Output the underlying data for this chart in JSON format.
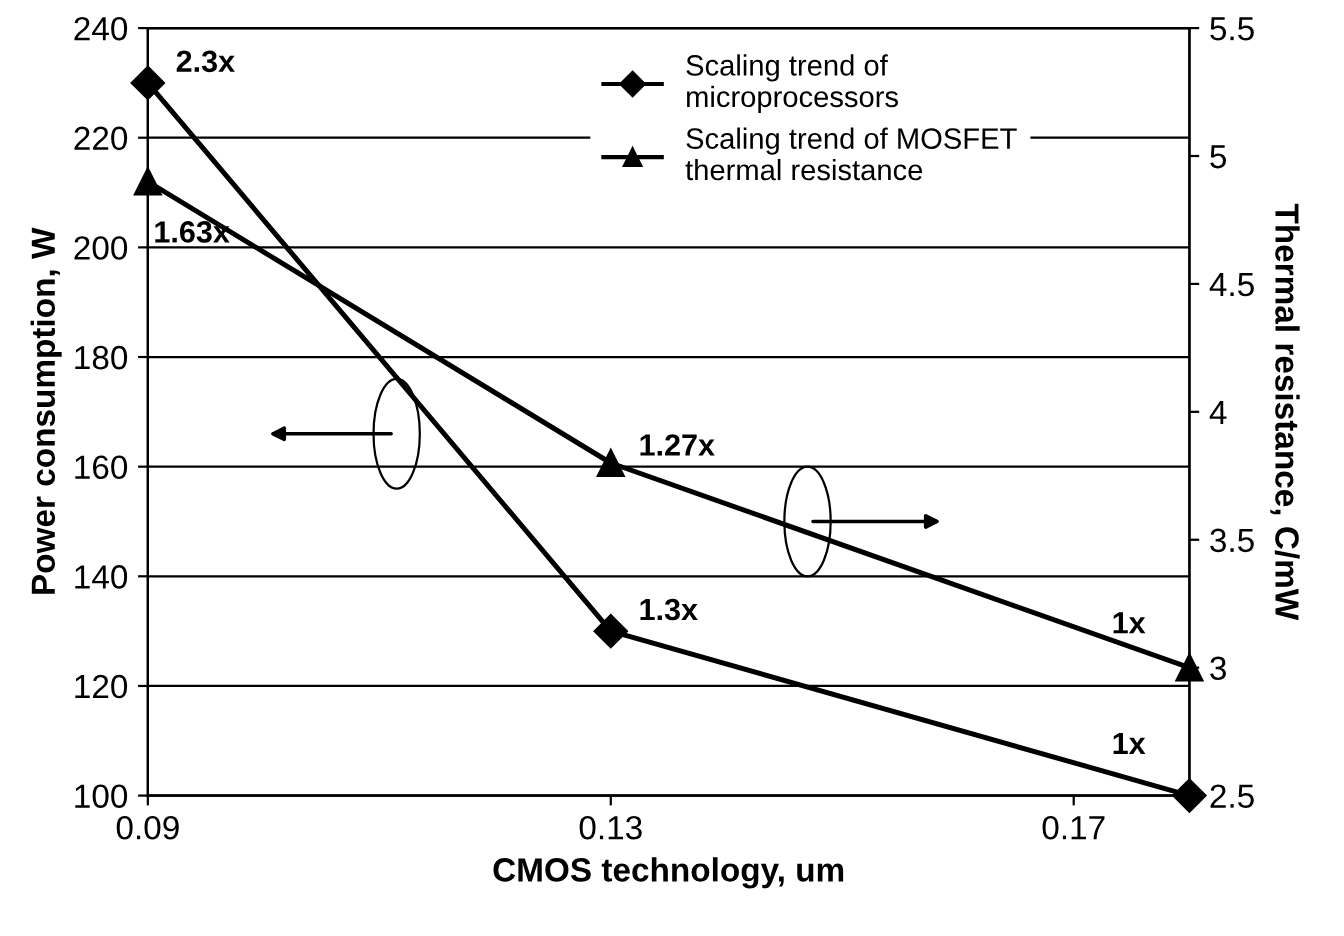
{
  "chart_data": {
    "type": "line",
    "xlabel": "CMOS technology, um",
    "ylabel": "Power consumption, W",
    "y2label": "Thermal resistance, C/mW",
    "x": [
      0.09,
      0.13,
      0.18
    ],
    "series": [
      {
        "name": "Scaling trend of microprocessors",
        "color": "#000000",
        "marker": "diamond",
        "values": [
          230,
          130,
          100
        ]
      },
      {
        "name": "Scaling trend of MOSFET thermal resistance",
        "color": "#000000",
        "marker": "triangle",
        "axis": "y2",
        "values": [
          4.9,
          3.8,
          3.0
        ]
      }
    ],
    "annotations": [
      {
        "text": "2.3x",
        "x": 0.09,
        "y": 230
      },
      {
        "text": "1.3x",
        "x": 0.13,
        "y": 130
      },
      {
        "text": "1x",
        "x": 0.18,
        "y": 100
      },
      {
        "text": "1.63x",
        "x": 0.09,
        "y": 208
      },
      {
        "text": "1.27x",
        "x": 0.13,
        "y": 160
      },
      {
        "text": "1x",
        "x": 0.18,
        "y": 122
      }
    ],
    "xlim": [
      0.09,
      0.18
    ],
    "xticks": [
      0.09,
      0.13,
      0.17
    ],
    "ylim": [
      100,
      240
    ],
    "yticks": [
      100,
      120,
      140,
      160,
      180,
      200,
      220,
      240
    ],
    "y2lim": [
      2.5,
      5.5
    ],
    "y2ticks": [
      2.5,
      3,
      3.5,
      4,
      4.5,
      5,
      5.5
    ],
    "grid": "y",
    "legend": "top right",
    "line_style": "solid"
  }
}
